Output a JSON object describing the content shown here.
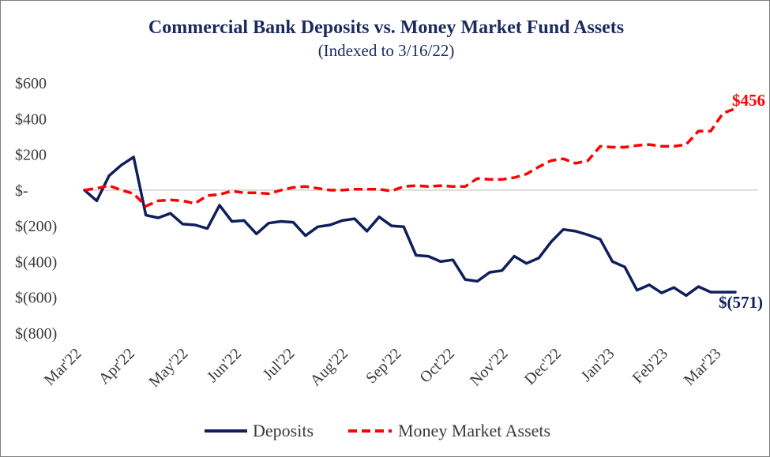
{
  "chart_data": {
    "type": "line",
    "title": "Commercial Bank Deposits vs. Money Market Fund Assets",
    "subtitle": "(Indexed to 3/16/22)",
    "xlabel": "",
    "ylabel": "",
    "ylim": [
      -800,
      600
    ],
    "y_ticks": [
      600,
      400,
      200,
      0,
      -200,
      -400,
      -600,
      -800
    ],
    "y_tick_labels": [
      "$600",
      "$400",
      "$200",
      "$-",
      "$(200)",
      "$(400)",
      "$(600)",
      "$(800)"
    ],
    "x_tick_labels": [
      "Mar'22",
      "Apr'22",
      "May'22",
      "Jun'22",
      "Jul'22",
      "Aug'22",
      "Sep'22",
      "Oct'22",
      "Nov'22",
      "Dec'22",
      "Jan'23",
      "Feb'23",
      "Mar'23"
    ],
    "grid": false,
    "zero_line": true,
    "legend_position": "bottom",
    "colors": {
      "deposits": "#0f1f5c",
      "mmf": "#ff0000",
      "title": "#1a2a5e",
      "zero_line": "#d0d0d0"
    },
    "series": [
      {
        "name": "Deposits",
        "style": "solid",
        "values": [
          0,
          -60,
          80,
          140,
          185,
          -140,
          -155,
          -130,
          -190,
          -195,
          -215,
          -85,
          -175,
          -170,
          -245,
          -185,
          -175,
          -180,
          -255,
          -205,
          -195,
          -170,
          -160,
          -230,
          -150,
          -200,
          -205,
          -365,
          -370,
          -400,
          -390,
          -500,
          -510,
          -460,
          -450,
          -370,
          -410,
          -380,
          -290,
          -220,
          -230,
          -250,
          -275,
          -400,
          -430,
          -560,
          -530,
          -575,
          -545,
          -590,
          -540,
          -571,
          -571,
          -571
        ],
        "end_label": "$(571)"
      },
      {
        "name": "Money Market Assets",
        "style": "dashed",
        "values": [
          0,
          10,
          25,
          0,
          -20,
          -90,
          -60,
          -55,
          -60,
          -75,
          -30,
          -25,
          -5,
          -15,
          -15,
          -20,
          0,
          15,
          20,
          10,
          0,
          0,
          5,
          5,
          5,
          -5,
          20,
          25,
          20,
          25,
          20,
          20,
          65,
          60,
          60,
          70,
          90,
          130,
          165,
          175,
          150,
          165,
          245,
          240,
          240,
          250,
          255,
          245,
          245,
          255,
          330,
          330,
          430,
          456
        ],
        "end_label": "$456"
      }
    ]
  }
}
